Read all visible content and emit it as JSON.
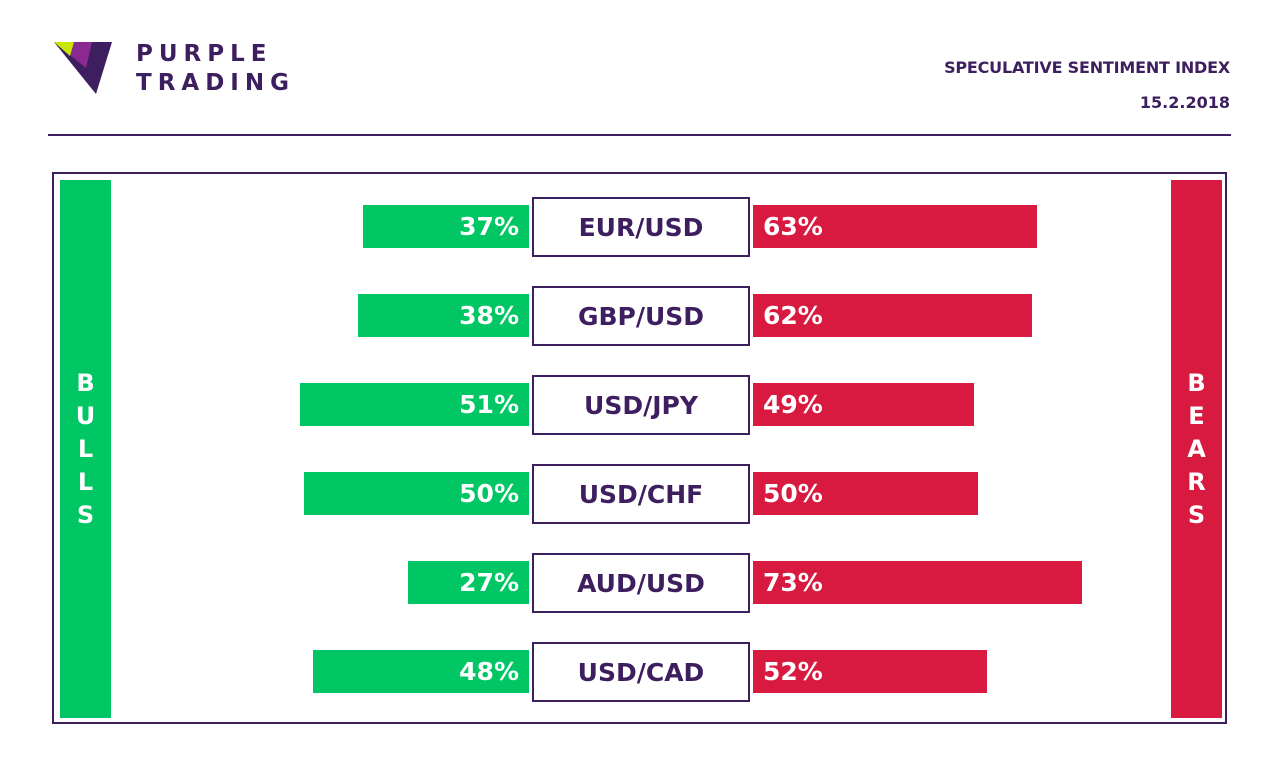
{
  "brand": {
    "line1": "PURPLE",
    "line2": "TRADING"
  },
  "header": {
    "title": "SPECULATIVE SENTIMENT INDEX",
    "date": "15.2.2018"
  },
  "sides": {
    "left": "BULLS",
    "right": "BEARS"
  },
  "colors": {
    "bulls": "#00c764",
    "bears": "#d81940",
    "purple": "#3d1e5e",
    "logo_green": "#c8e600"
  },
  "chart_data": {
    "type": "bar",
    "categories": [
      "EUR/USD",
      "GBP/USD",
      "USD/JPY",
      "USD/CHF",
      "AUD/USD",
      "USD/CAD"
    ],
    "series": [
      {
        "name": "BULLS",
        "values": [
          37,
          38,
          51,
          50,
          27,
          48
        ]
      },
      {
        "name": "BEARS",
        "values": [
          63,
          62,
          49,
          50,
          73,
          52
        ]
      }
    ],
    "labels_bulls": [
      "37%",
      "38%",
      "51%",
      "50%",
      "27%",
      "48%"
    ],
    "labels_bears": [
      "63%",
      "62%",
      "49%",
      "50%",
      "73%",
      "52%"
    ],
    "unit": "%"
  }
}
